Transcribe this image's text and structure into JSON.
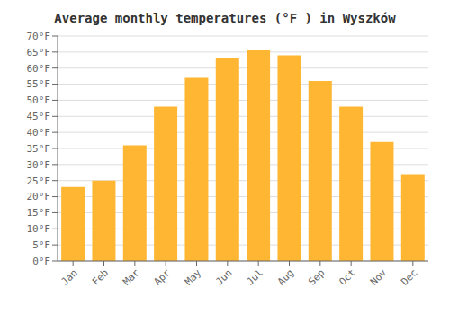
{
  "chart_data": {
    "type": "bar",
    "title": "Average monthly temperatures (°F ) in Wyszków",
    "categories": [
      "Jan",
      "Feb",
      "Mar",
      "Apr",
      "May",
      "Jun",
      "Jul",
      "Aug",
      "Sep",
      "Oct",
      "Nov",
      "Dec"
    ],
    "values": [
      23,
      25,
      36,
      48,
      57,
      63,
      65.5,
      64,
      56,
      48,
      37,
      27
    ],
    "color": "#FFB733",
    "ylim": [
      0,
      70
    ],
    "yticks": [
      {
        "value": 0,
        "label": "0°F"
      },
      {
        "value": 5,
        "label": "5°F"
      },
      {
        "value": 10,
        "label": "10°F"
      },
      {
        "value": 15,
        "label": "15°F"
      },
      {
        "value": 20,
        "label": "20°F"
      },
      {
        "value": 25,
        "label": "25°F"
      },
      {
        "value": 30,
        "label": "30°F"
      },
      {
        "value": 35,
        "label": "35°F"
      },
      {
        "value": 40,
        "label": "40°F"
      },
      {
        "value": 45,
        "label": "45°F"
      },
      {
        "value": 50,
        "label": "50°F"
      },
      {
        "value": 55,
        "label": "55°F"
      },
      {
        "value": 60,
        "label": "60°F"
      },
      {
        "value": 65,
        "label": "65°F"
      },
      {
        "value": 70,
        "label": "70°F"
      }
    ],
    "grid": true
  }
}
